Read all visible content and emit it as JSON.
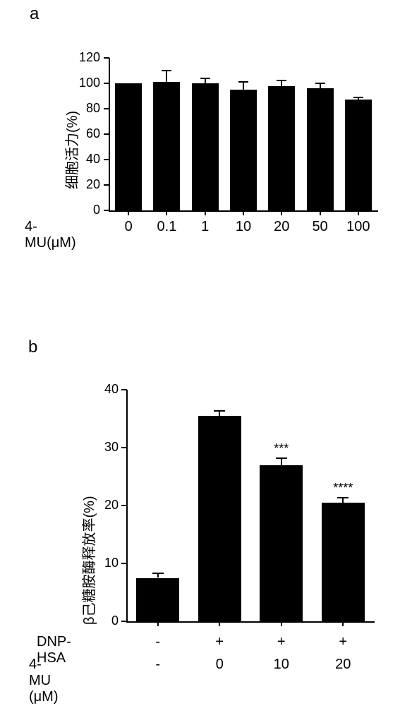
{
  "panel_a": {
    "label": "a",
    "type": "bar",
    "y_title": "细胞活力(%)",
    "x_label_prefix": "4-MU(μM)",
    "categories": [
      "0",
      "0.1",
      "1",
      "10",
      "20",
      "50",
      "100"
    ],
    "values": [
      100,
      101,
      100,
      95,
      98,
      96,
      87
    ],
    "errors": [
      0,
      9,
      4,
      6,
      4,
      4,
      2
    ],
    "bar_color": "#000000",
    "ylim": [
      0,
      120
    ],
    "ytick_step": 20,
    "yticks": [
      0,
      20,
      40,
      60,
      80,
      100,
      120
    ],
    "title_fontsize": 20,
    "tick_fontsize": 18,
    "background_color": "#ffffff",
    "bar_width": 0.7
  },
  "panel_b": {
    "label": "b",
    "type": "bar",
    "y_title": "β己糖胺酶释放率(%)",
    "row1_label": "DNP-HSA",
    "row2_label": "4-MU (μM)",
    "row1_values": [
      "-",
      "+",
      "+",
      "+"
    ],
    "row2_values": [
      "-",
      "0",
      "10",
      "20"
    ],
    "values": [
      7.5,
      35.5,
      27,
      20.5
    ],
    "errors": [
      0.8,
      0.8,
      1.2,
      0.8
    ],
    "significance": [
      "",
      "",
      "***",
      "****"
    ],
    "bar_color": "#000000",
    "ylim": [
      0,
      40
    ],
    "ytick_step": 10,
    "yticks": [
      0,
      10,
      20,
      30,
      40
    ],
    "title_fontsize": 20,
    "tick_fontsize": 18,
    "background_color": "#ffffff",
    "bar_width": 0.7
  }
}
